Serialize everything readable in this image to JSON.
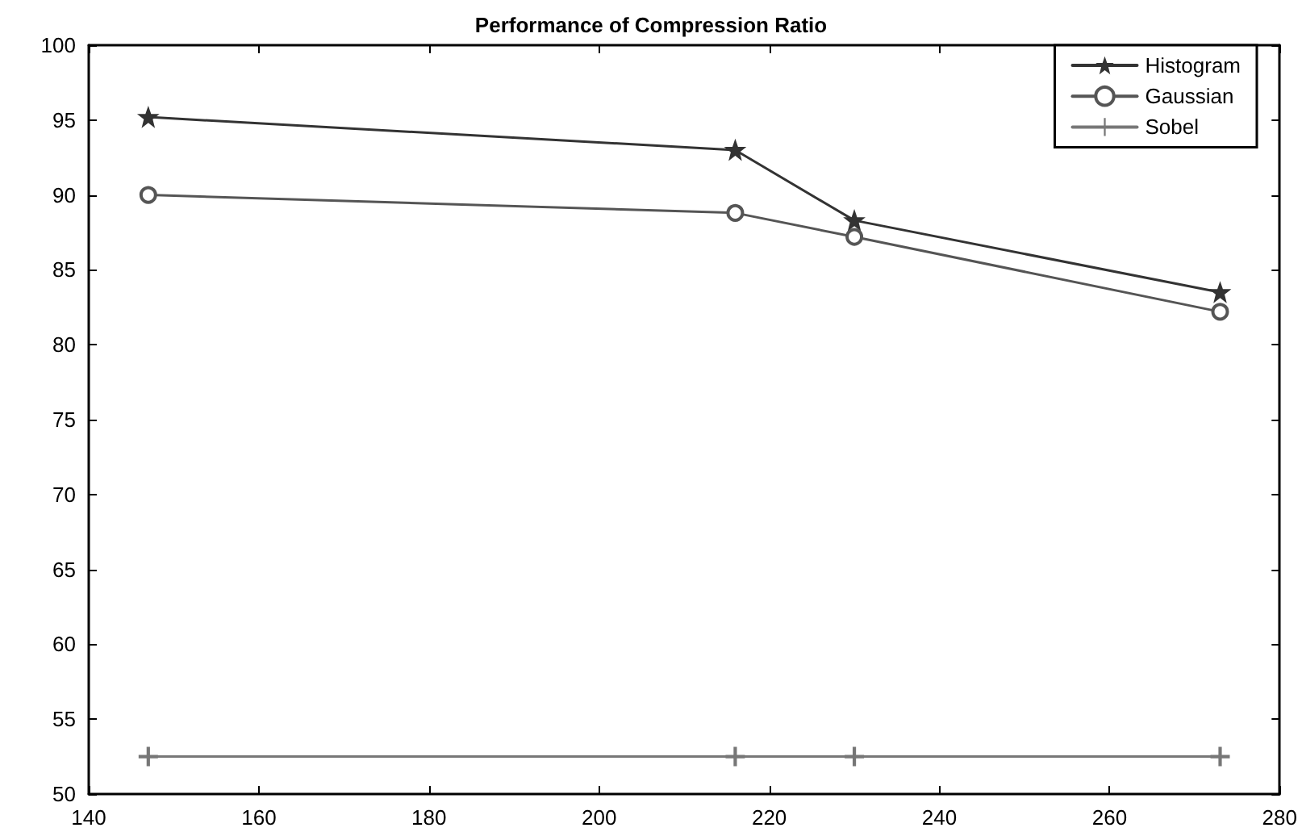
{
  "chart_data": {
    "type": "line",
    "title": "Performance of Compression Ratio",
    "x": [
      147,
      216,
      230,
      273
    ],
    "series": [
      {
        "name": "Histogram",
        "color": "#333333",
        "marker": "star",
        "values": [
          95.2,
          93,
          88.3,
          83.5
        ]
      },
      {
        "name": "Gaussian",
        "color": "#555555",
        "marker": "circle",
        "values": [
          90,
          88.8,
          87.2,
          82.2
        ]
      },
      {
        "name": "Sobel",
        "color": "#777777",
        "marker": "cross",
        "values": [
          52.5,
          52.5,
          52.5,
          52.5
        ]
      }
    ],
    "xlim": [
      140,
      280
    ],
    "xticks": [
      140,
      160,
      180,
      200,
      220,
      240,
      260,
      280
    ],
    "ylim": [
      50,
      100
    ],
    "yticks": [
      50,
      55,
      60,
      65,
      70,
      75,
      80,
      85,
      90,
      95,
      100
    ],
    "grid": false,
    "legend": "top right",
    "line_style": "solid"
  }
}
